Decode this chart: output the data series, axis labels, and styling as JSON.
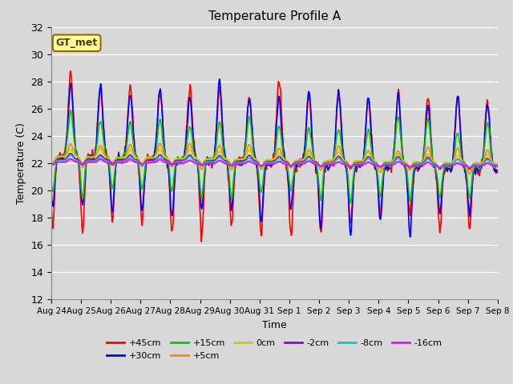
{
  "title": "Temperature Profile A",
  "xlabel": "Time",
  "ylabel": "Temperature (C)",
  "ylim": [
    12,
    32
  ],
  "xlim_days": [
    0,
    15
  ],
  "background_color": "#d8d8d8",
  "plot_bg_color": "#d8d8d8",
  "grid_color": "#ffffff",
  "annotation_text": "GT_met",
  "annotation_bg": "#ffff99",
  "annotation_border": "#996600",
  "series": [
    {
      "label": "+45cm",
      "color": "#ff0000",
      "lw": 1.2
    },
    {
      "label": "+30cm",
      "color": "#0000ff",
      "lw": 1.2
    },
    {
      "label": "+15cm",
      "color": "#00cc00",
      "lw": 1.2
    },
    {
      "label": "+5cm",
      "color": "#ff8800",
      "lw": 1.2
    },
    {
      "label": "0cm",
      "color": "#cccc00",
      "lw": 1.2
    },
    {
      "label": "-2cm",
      "color": "#9900cc",
      "lw": 1.2
    },
    {
      "label": "-8cm",
      "color": "#00cccc",
      "lw": 1.2
    },
    {
      "label": "-16cm",
      "color": "#ff00ff",
      "lw": 1.5
    }
  ],
  "xtick_labels": [
    "Aug 24",
    "Aug 25",
    "Aug 26",
    "Aug 27",
    "Aug 28",
    "Aug 29",
    "Aug 30",
    "Aug 31",
    "Sep 1",
    "Sep 2",
    "Sep 3",
    "Sep 4",
    "Sep 5",
    "Sep 6",
    "Sep 7",
    "Sep 8"
  ],
  "ytick_positions": [
    12,
    14,
    16,
    18,
    20,
    22,
    24,
    26,
    28,
    30,
    32
  ],
  "legend_ncol": 6,
  "legend_fontsize": 8
}
